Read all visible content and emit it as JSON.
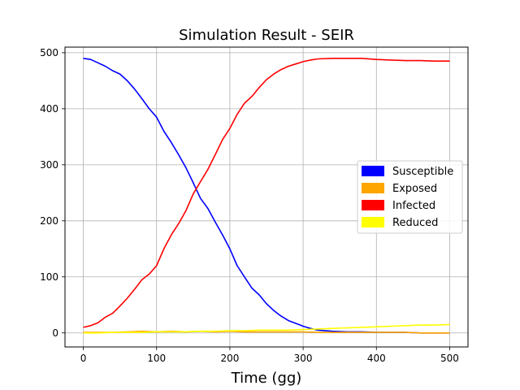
{
  "chart_data": {
    "type": "line",
    "title": "Simulation Result - SEIR",
    "xlabel": "Time (gg)",
    "ylabel": "",
    "xlim": [
      -25,
      525
    ],
    "ylim": [
      -25,
      510
    ],
    "xticks": [
      0,
      100,
      200,
      300,
      400,
      500
    ],
    "yticks": [
      0,
      100,
      200,
      300,
      400,
      500
    ],
    "grid": true,
    "legend_position": "center-right",
    "series": [
      {
        "name": "Susceptible",
        "color": "#0000ff",
        "x": [
          0,
          10,
          20,
          30,
          40,
          50,
          60,
          70,
          80,
          90,
          100,
          110,
          120,
          130,
          140,
          150,
          160,
          170,
          180,
          190,
          200,
          210,
          220,
          230,
          240,
          250,
          260,
          270,
          280,
          290,
          300,
          310,
          320,
          340,
          360,
          380,
          400,
          420,
          440,
          460,
          480,
          500
        ],
        "y": [
          490,
          488,
          482,
          476,
          468,
          462,
          450,
          435,
          418,
          400,
          385,
          360,
          340,
          318,
          295,
          268,
          240,
          222,
          198,
          175,
          150,
          120,
          100,
          80,
          68,
          52,
          40,
          30,
          22,
          17,
          12,
          8,
          5,
          3,
          2,
          2,
          1,
          1,
          1,
          0,
          0,
          0
        ]
      },
      {
        "name": "Exposed",
        "color": "#ffa500",
        "x": [
          0,
          20,
          40,
          60,
          80,
          100,
          120,
          140,
          160,
          180,
          200,
          220,
          240,
          260,
          280,
          300,
          320,
          340,
          360,
          380,
          400,
          420,
          440,
          460,
          480,
          500
        ],
        "y": [
          1,
          1,
          1,
          2,
          3,
          2,
          3,
          2,
          3,
          2,
          3,
          2,
          2,
          2,
          2,
          2,
          1,
          1,
          1,
          1,
          1,
          1,
          1,
          0,
          0,
          0
        ]
      },
      {
        "name": "Infected",
        "color": "#ff0000",
        "x": [
          0,
          10,
          20,
          30,
          40,
          50,
          60,
          70,
          80,
          90,
          100,
          110,
          120,
          130,
          140,
          150,
          160,
          170,
          180,
          190,
          200,
          210,
          220,
          230,
          240,
          250,
          260,
          270,
          280,
          290,
          300,
          310,
          320,
          340,
          360,
          380,
          400,
          420,
          440,
          460,
          480,
          500
        ],
        "y": [
          10,
          13,
          18,
          28,
          35,
          48,
          62,
          78,
          95,
          105,
          120,
          150,
          175,
          195,
          218,
          248,
          270,
          292,
          318,
          345,
          365,
          390,
          410,
          422,
          438,
          452,
          462,
          470,
          476,
          480,
          484,
          487,
          489,
          490,
          490,
          490,
          488,
          487,
          486,
          486,
          485,
          485
        ]
      },
      {
        "name": "Reduced",
        "color": "#ffff00",
        "x": [
          0,
          20,
          40,
          60,
          80,
          100,
          120,
          140,
          160,
          180,
          200,
          220,
          240,
          260,
          280,
          300,
          320,
          340,
          360,
          380,
          400,
          420,
          440,
          460,
          480,
          500
        ],
        "y": [
          0,
          0,
          1,
          1,
          1,
          2,
          2,
          2,
          3,
          3,
          4,
          4,
          5,
          5,
          5,
          6,
          7,
          8,
          9,
          10,
          11,
          12,
          13,
          14,
          14,
          15
        ]
      }
    ]
  }
}
